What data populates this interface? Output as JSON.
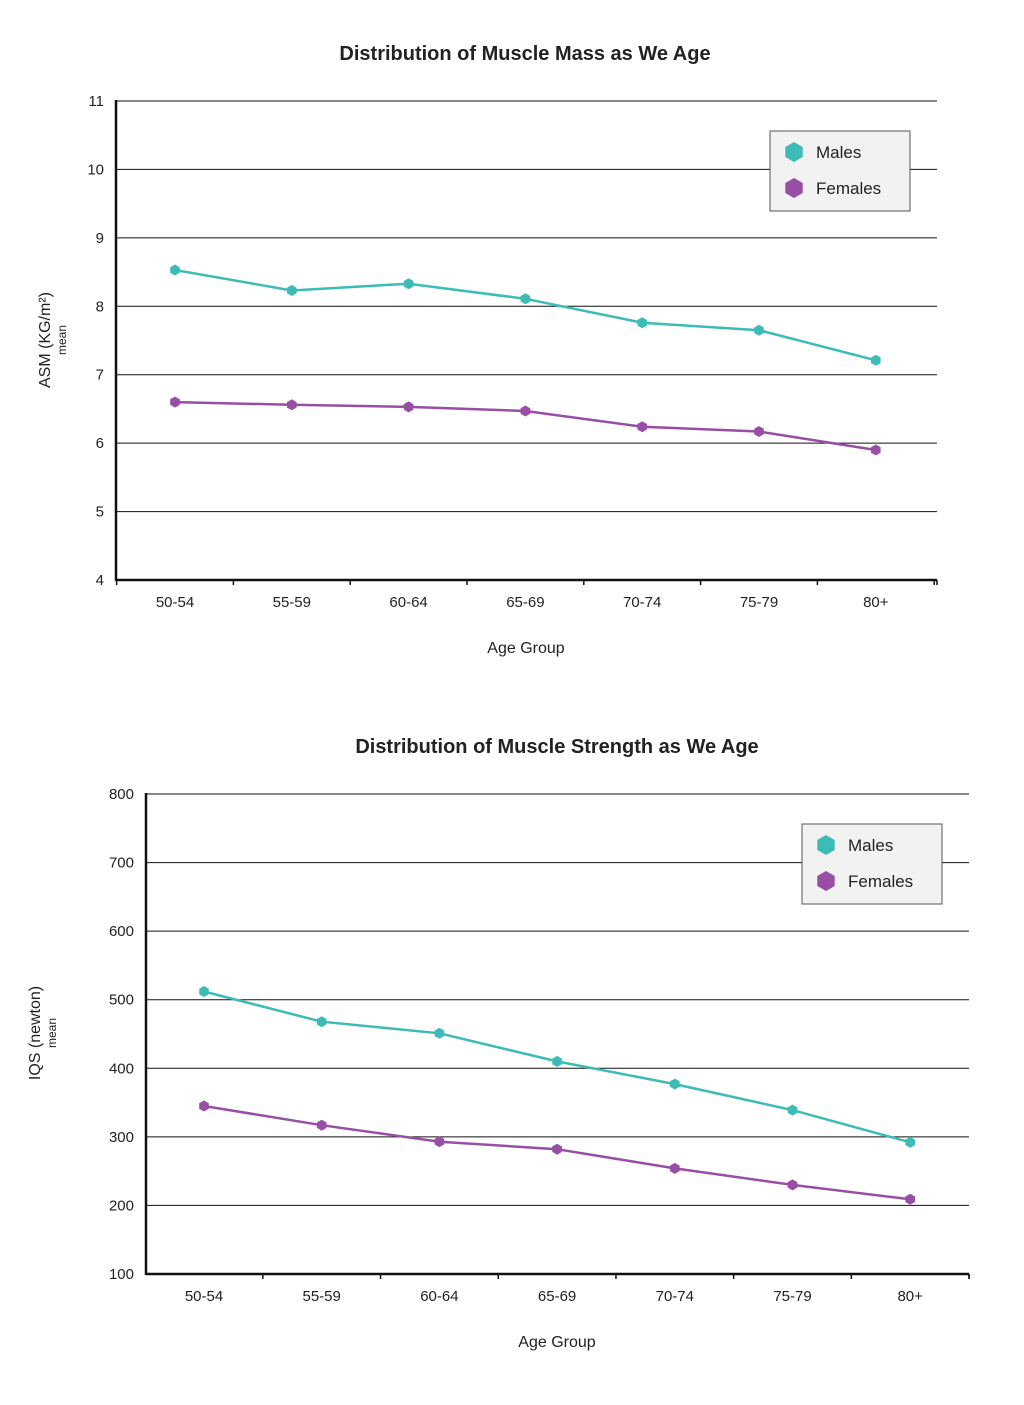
{
  "chart_data": [
    {
      "type": "line",
      "title": "Distribution of Muscle Mass as We Age",
      "xlabel": "Age Group",
      "ylabel": "ASM (KG/m²)",
      "ylabel_sub": "mean",
      "categories": [
        "50-54",
        "55-59",
        "60-64",
        "65-69",
        "70-74",
        "75-79",
        "80+"
      ],
      "ylim": [
        4,
        11
      ],
      "yticks": [
        4,
        5,
        6,
        7,
        8,
        9,
        10,
        11
      ],
      "grid": true,
      "legend": "top-right",
      "series": [
        {
          "name": "Males",
          "color": "#3dbbb6",
          "values": [
            8.53,
            8.23,
            8.33,
            8.11,
            7.76,
            7.65,
            7.21
          ]
        },
        {
          "name": "Females",
          "color": "#974ea4",
          "values": [
            6.6,
            6.56,
            6.53,
            6.47,
            6.24,
            6.17,
            5.9
          ]
        }
      ]
    },
    {
      "type": "line",
      "title": "Distribution of Muscle Strength as We Age",
      "xlabel": "Age Group",
      "ylabel": "IQS (newton)",
      "ylabel_sub": "mean",
      "categories": [
        "50-54",
        "55-59",
        "60-64",
        "65-69",
        "70-74",
        "75-79",
        "80+"
      ],
      "ylim": [
        100,
        800
      ],
      "yticks": [
        100,
        200,
        300,
        400,
        500,
        600,
        700,
        800
      ],
      "grid": true,
      "legend": "top-right",
      "series": [
        {
          "name": "Males",
          "color": "#3dbbb6",
          "values": [
            512,
            468,
            451,
            410,
            377,
            339,
            292
          ]
        },
        {
          "name": "Females",
          "color": "#974ea4",
          "values": [
            345,
            317,
            293,
            282,
            254,
            230,
            209
          ]
        }
      ]
    }
  ]
}
